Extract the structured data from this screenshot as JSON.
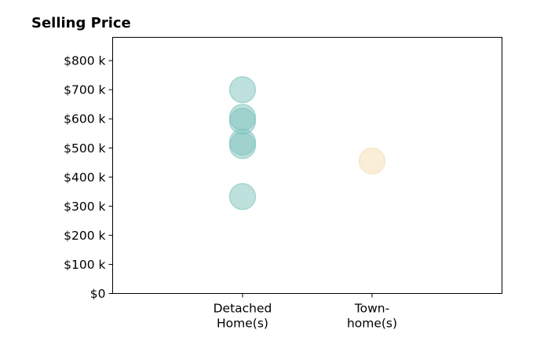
{
  "chart_data": {
    "type": "scatter",
    "title": "Selling Price",
    "xlabel": "",
    "ylabel": "",
    "categories": [
      {
        "lines": [
          "Detached",
          "Home(s)"
        ]
      },
      {
        "lines": [
          "Town-",
          "home(s)"
        ]
      }
    ],
    "ylim": [
      0,
      880000
    ],
    "yticks": [
      {
        "value": 0,
        "label": "$0"
      },
      {
        "value": 100000,
        "label": "$100 k"
      },
      {
        "value": 200000,
        "label": "$200 k"
      },
      {
        "value": 300000,
        "label": "$300 k"
      },
      {
        "value": 400000,
        "label": "$400 k"
      },
      {
        "value": 500000,
        "label": "$500 k"
      },
      {
        "value": 600000,
        "label": "$600 k"
      },
      {
        "value": 700000,
        "label": "$700 k"
      },
      {
        "value": 800000,
        "label": "$800 k"
      }
    ],
    "grid": false,
    "series": [
      {
        "category": 0,
        "color": "#7fc4bd",
        "values": [
          700000,
          605000,
          592000,
          520000,
          508000,
          333000
        ]
      },
      {
        "category": 1,
        "color": "#f5deb3",
        "values": [
          455000
        ]
      }
    ]
  }
}
